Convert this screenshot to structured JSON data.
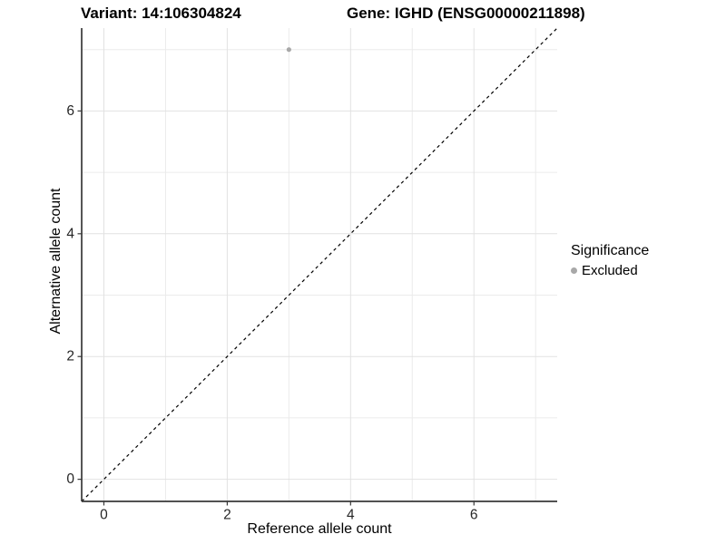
{
  "header": {
    "variant_title": "Variant: 14:106304824",
    "gene_title": "Gene: IGHD (ENSG00000211898)"
  },
  "chart_data": {
    "type": "scatter",
    "xlabel": "Reference allele count",
    "ylabel": "Alternative allele count",
    "xlim": [
      -0.36,
      7.35
    ],
    "ylim": [
      -0.36,
      7.35
    ],
    "x_ticks": [
      0,
      2,
      4,
      6
    ],
    "y_ticks": [
      0,
      2,
      4,
      6
    ],
    "x_minor_gridlines": [
      1,
      3,
      5,
      7
    ],
    "y_minor_gridlines": [
      1,
      3,
      5,
      7
    ],
    "grid": true,
    "identity_line": {
      "type": "dashed",
      "slope": 1,
      "intercept": 0,
      "color": "#000000"
    },
    "series": [
      {
        "name": "Excluded",
        "color": "#a8a8a8",
        "points": [
          [
            3,
            7
          ]
        ]
      }
    ],
    "legend": {
      "title": "Significance",
      "position": "right",
      "items": [
        {
          "label": "Excluded",
          "color": "#a8a8a8"
        }
      ]
    }
  },
  "colors": {
    "background": "#ffffff",
    "panel_background": "#ffffff",
    "grid_major": "#e2e2e2",
    "grid_minor": "#ebebeb",
    "axis_line": "#383838",
    "tick_mark": "#383838",
    "tick_text": "#262626"
  }
}
